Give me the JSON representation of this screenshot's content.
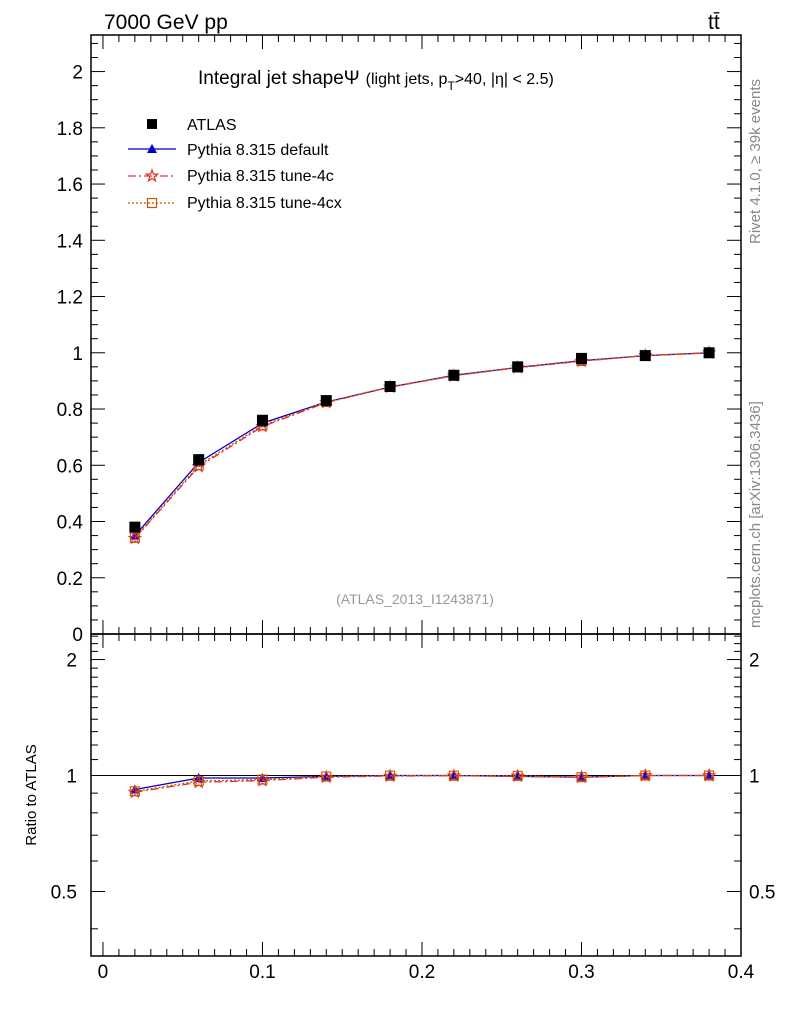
{
  "header": {
    "left": "7000 GeV pp",
    "right": "tt̄"
  },
  "side_texts": {
    "rivet": "Rivet 4.1.0, ≥ 39k events",
    "mcplots": "mcplots.cern.ch [arXiv:1306.3436]"
  },
  "analysis_id": "(ATLAS_2013_I1243871)",
  "title": {
    "main": "Integral jet shape",
    "psi": "Ψ",
    "sub": "(light jets, p",
    "sub_sub": "T",
    "sub_rest": ">40, |η| < 2.5)"
  },
  "colors": {
    "atlas": "#000000",
    "default": "#0000cc",
    "tune4c": "#e03030",
    "tune4cx": "#cc5500"
  },
  "chart_data": [
    {
      "type": "line",
      "panel": "main",
      "xlim": [
        -0.0075,
        0.4
      ],
      "ylim": [
        0,
        2.13
      ],
      "x": [
        0.02,
        0.06,
        0.1,
        0.14,
        0.18,
        0.22,
        0.26,
        0.3,
        0.34,
        0.38
      ],
      "series": [
        {
          "name": "ATLAS",
          "marker": "square",
          "values": [
            0.38,
            0.62,
            0.76,
            0.83,
            0.88,
            0.92,
            0.95,
            0.98,
            0.99,
            1.0
          ]
        },
        {
          "name": "Pythia 8.315 default",
          "marker": "triangle",
          "values": [
            0.35,
            0.61,
            0.75,
            0.825,
            0.878,
            0.92,
            0.948,
            0.972,
            0.99,
            1.0
          ]
        },
        {
          "name": "Pythia 8.315 tune-4c",
          "marker": "star",
          "values": [
            0.34,
            0.595,
            0.738,
            0.823,
            0.878,
            0.918,
            0.947,
            0.97,
            0.99,
            1.0
          ]
        },
        {
          "name": "Pythia 8.315 tune-4cx",
          "marker": "open-square",
          "values": [
            0.342,
            0.6,
            0.742,
            0.825,
            0.879,
            0.919,
            0.948,
            0.971,
            0.99,
            1.0
          ]
        }
      ],
      "yticks": [
        0,
        0.2,
        0.4,
        0.6,
        0.8,
        1,
        1.2,
        1.4,
        1.6,
        1.8,
        2
      ],
      "ytick_labels": [
        "0",
        "0.2",
        "0.4",
        "0.6",
        "0.8",
        "1",
        "1.2",
        "1.4",
        "1.6",
        "1.8",
        "2"
      ],
      "legend": "top-left"
    },
    {
      "type": "line",
      "panel": "ratio",
      "ylabel": "Ratio to ATLAS",
      "xlim": [
        -0.0075,
        0.4
      ],
      "ylim": [
        0.34,
        2.33
      ],
      "x": [
        0.02,
        0.06,
        0.1,
        0.14,
        0.18,
        0.22,
        0.26,
        0.3,
        0.34,
        0.38
      ],
      "series": [
        {
          "name": "Pythia 8.315 default",
          "marker": "triangle",
          "values": [
            0.92,
            0.985,
            0.985,
            0.995,
            1.0,
            1.0,
            0.995,
            0.99,
            1.0,
            1.0
          ]
        },
        {
          "name": "Pythia 8.315 tune-4c",
          "marker": "star",
          "values": [
            0.905,
            0.96,
            0.97,
            0.99,
            0.997,
            0.998,
            0.996,
            0.99,
            1.0,
            1.0
          ]
        },
        {
          "name": "Pythia 8.315 tune-4cx",
          "marker": "open-square",
          "values": [
            0.91,
            0.968,
            0.976,
            0.994,
            0.999,
            0.999,
            0.998,
            0.99,
            1.0,
            1.0
          ]
        }
      ],
      "yticks": [
        0.5,
        1,
        2
      ],
      "ytick_labels": [
        "0.5",
        "1",
        "2"
      ],
      "xticks": [
        0,
        0.1,
        0.2,
        0.3,
        0.4
      ],
      "xtick_labels": [
        "0",
        "0.1",
        "0.2",
        "0.3",
        "0.4"
      ]
    }
  ]
}
